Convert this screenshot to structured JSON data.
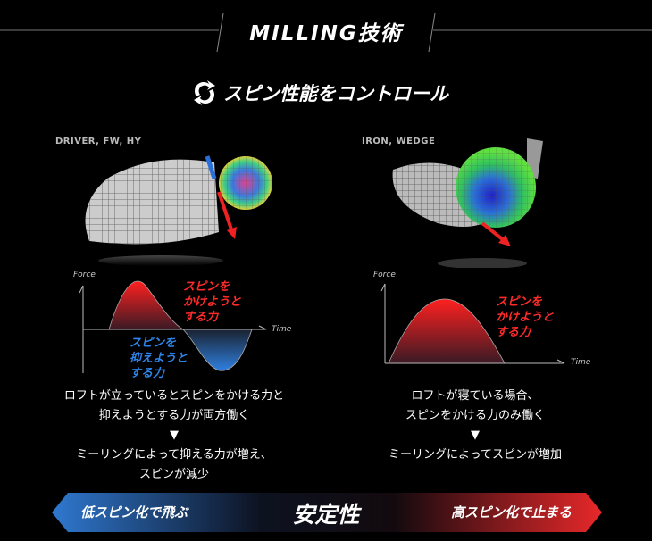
{
  "header": {
    "title": "MILLING技術",
    "subtitle": "スピン性能をコントロール",
    "subtitle_icon": "rotate-arrows-icon"
  },
  "left": {
    "label": "DRIVER, FW, HY",
    "chart": {
      "force_label": "Force",
      "time_label": "Time",
      "positive_label": [
        "スピンを",
        "かけようと",
        "する力"
      ],
      "negative_label": [
        "スピンを",
        "抑えようと",
        "する力"
      ]
    },
    "lines": [
      "ロフトが立っているとスピンをかける力と",
      "抑えようとする力が両方働く"
    ],
    "arrow": "▼",
    "result": [
      "ミーリングによって抑える力が増え、",
      "スピンが減少"
    ]
  },
  "right": {
    "label": "IRON, WEDGE",
    "chart": {
      "force_label": "Force",
      "time_label": "Time",
      "positive_label": [
        "スピンを",
        "かけようと",
        "する力"
      ]
    },
    "lines": [
      "ロフトが寝ている場合、",
      "スピンをかける力のみ働く"
    ],
    "arrow": "▼",
    "result": [
      "ミーリングによってスピンが増加"
    ]
  },
  "banner": {
    "left": "低スピン化で飛ぶ",
    "center": "安定性",
    "right": "高スピン化で止まる",
    "left_color": "#2f78d0",
    "right_color": "#e8282a"
  }
}
